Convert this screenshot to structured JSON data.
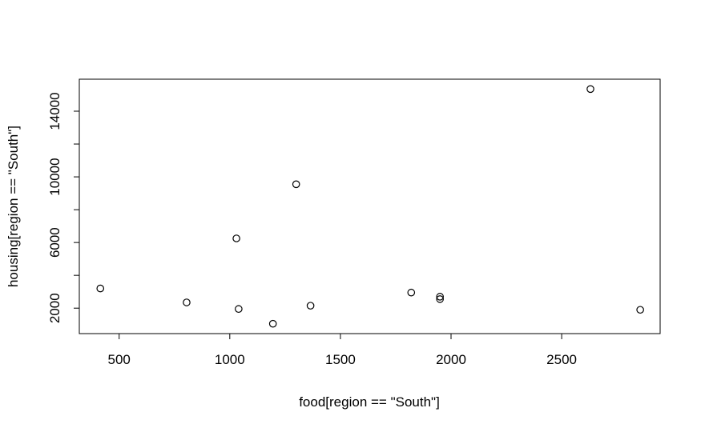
{
  "chart_data": {
    "type": "scatter",
    "title": "",
    "xlabel": "food[region == \"South\"]",
    "ylabel": "housing[region == \"South\"]",
    "xlim": [
      320,
      2945
    ],
    "ylim": [
      450,
      15950
    ],
    "xticks": [
      500,
      1000,
      1500,
      2000,
      2500
    ],
    "yticks": [
      2000,
      6000,
      10000,
      14000
    ],
    "yticks_minor": [
      4000,
      8000,
      12000
    ],
    "grid": false,
    "legend": "none",
    "marker": "open-circle",
    "color": "#000000",
    "points": [
      {
        "x": 415,
        "y": 3200
      },
      {
        "x": 805,
        "y": 2350
      },
      {
        "x": 1030,
        "y": 6250
      },
      {
        "x": 1040,
        "y": 1950
      },
      {
        "x": 1195,
        "y": 1050
      },
      {
        "x": 1300,
        "y": 9550
      },
      {
        "x": 1365,
        "y": 2150
      },
      {
        "x": 1820,
        "y": 2950
      },
      {
        "x": 1950,
        "y": 2700
      },
      {
        "x": 1950,
        "y": 2550
      },
      {
        "x": 2630,
        "y": 15350
      },
      {
        "x": 2855,
        "y": 1900
      }
    ]
  }
}
